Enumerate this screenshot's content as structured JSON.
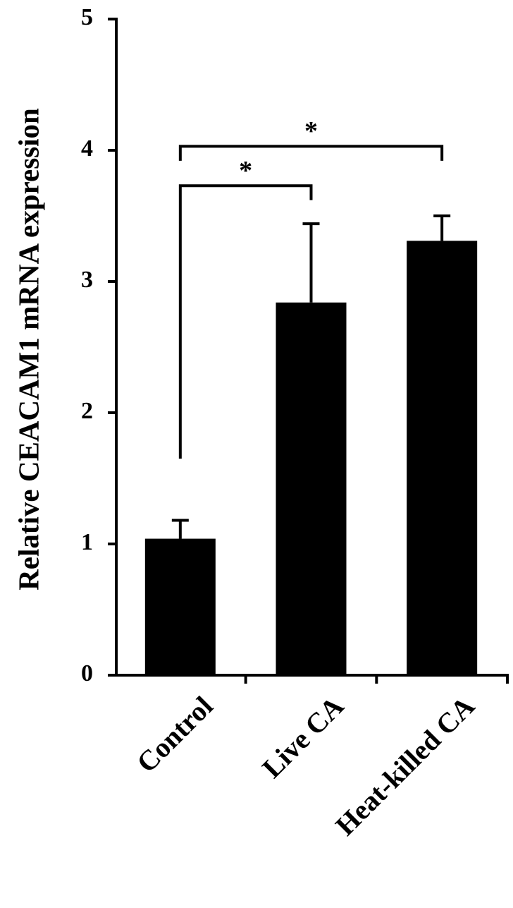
{
  "chart_data": {
    "type": "bar",
    "ylabel": "Relative CEACAM1 mRNA expression",
    "categories": [
      "Control",
      "Live CA",
      "Heat-killed CA"
    ],
    "values": [
      1.04,
      2.84,
      3.31
    ],
    "errors": [
      0.14,
      0.6,
      0.19
    ],
    "color": "#000000",
    "ylim": [
      0,
      5
    ],
    "yticks": [
      0,
      1,
      2,
      3,
      4,
      5
    ],
    "grid": false,
    "annotations": [
      {
        "text": "*",
        "from": 0,
        "to": 2,
        "y": 4.03,
        "legs": [
          3.92,
          3.92
        ]
      },
      {
        "text": "*",
        "from": 0,
        "to": 1,
        "y": 3.73,
        "legs": [
          1.65,
          3.62
        ]
      }
    ]
  }
}
